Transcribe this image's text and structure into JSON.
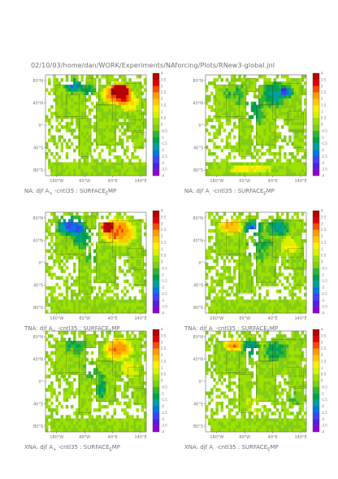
{
  "header": {
    "title": "02/10/03/home/dan/WORK/Experiments/NAforcing/Plots/RNew3-global.jnl"
  },
  "colorbar": {
    "ticks": [
      "4",
      "3.5",
      "3",
      "2.5",
      "2",
      "1.5",
      "1",
      "0.5",
      "0",
      "-0.5",
      "-1",
      "-1.5",
      "-2",
      "-2.5",
      "-3",
      "-3.5",
      "-4"
    ],
    "colors": [
      "#b40000",
      "#e00000",
      "#ff4a00",
      "#ff9b00",
      "#ffc800",
      "#fff000",
      "#d9f000",
      "#9ee000",
      "#82cd14",
      "#32b432",
      "#00a050",
      "#00a0a0",
      "#0078dc",
      "#4040ff",
      "#5020e0",
      "#9000d0"
    ]
  },
  "chart_data": [
    {
      "type": "heatmap",
      "title": "NA: djf A+ -cntl35 : SURFACE_EMP",
      "caption_parts": [
        "NA: djf A",
        "+",
        " -cntl35 : SURFACE",
        "E",
        "MP"
      ],
      "yticks": [
        "80°N",
        "40°N",
        "0°",
        "40°S",
        "80°S"
      ],
      "xticks": [
        "160°W",
        "60°W",
        "40°E",
        "140°E"
      ],
      "xlim": [
        -200,
        160
      ],
      "ylim": [
        -90,
        90
      ],
      "blobs": [
        {
          "lon": 55,
          "lat": 55,
          "w": 60,
          "h": 22,
          "v": 3.2
        },
        {
          "lon": 70,
          "lat": 62,
          "w": 40,
          "h": 14,
          "v": 3.8
        },
        {
          "lon": -100,
          "lat": 70,
          "w": 40,
          "h": 14,
          "v": -2.2
        },
        {
          "lon": -50,
          "lat": 62,
          "w": 30,
          "h": 14,
          "v": -1.2
        },
        {
          "lon": 100,
          "lat": 40,
          "w": 40,
          "h": 20,
          "v": 1.6
        }
      ]
    },
    {
      "type": "heatmap",
      "title": "NA: djf A- -cntl35 : SURFACE_EMP",
      "caption_parts": [
        "NA: djf A",
        "-",
        " -cntl35 : SURFACE",
        "E",
        "MP"
      ],
      "yticks": [
        "80°N",
        "40°N",
        "0°",
        "40°S",
        "80°S"
      ],
      "xticks": [
        "160°W",
        "60°W",
        "40°E",
        "140°E"
      ],
      "xlim": [
        -200,
        160
      ],
      "ylim": [
        -90,
        90
      ],
      "blobs": [
        {
          "lon": 45,
          "lat": 55,
          "w": 50,
          "h": 26,
          "v": -1.8
        },
        {
          "lon": -90,
          "lat": 55,
          "w": 50,
          "h": 22,
          "v": -0.8
        },
        {
          "lon": -40,
          "lat": -78,
          "w": 90,
          "h": 8,
          "v": 1.4
        },
        {
          "lon": 90,
          "lat": 60,
          "w": 30,
          "h": 12,
          "v": -2.6
        },
        {
          "lon": -20,
          "lat": 25,
          "w": 40,
          "h": 30,
          "v": -1.0
        }
      ]
    },
    {
      "type": "heatmap",
      "title": "TNA: djf A+ -cntl35 : SURFACE_EMP",
      "caption_parts": [
        "TNA: djf A",
        "+",
        " -cntl35 : SURFACE",
        "E",
        "MP"
      ],
      "yticks": [
        "80°N",
        "40°N",
        "0°",
        "40°S",
        "80°S"
      ],
      "xticks": [
        "160°W",
        "60°W",
        "40°E",
        "140°E"
      ],
      "xlim": [
        -200,
        160
      ],
      "ylim": [
        -90,
        90
      ],
      "blobs": [
        {
          "lon": -110,
          "lat": 66,
          "w": 60,
          "h": 20,
          "v": -2.6
        },
        {
          "lon": -70,
          "lat": 45,
          "w": 40,
          "h": 22,
          "v": -1.6
        },
        {
          "lon": 60,
          "lat": 55,
          "w": 70,
          "h": 28,
          "v": 2.6
        },
        {
          "lon": -40,
          "lat": 10,
          "w": 30,
          "h": 20,
          "v": -0.9
        },
        {
          "lon": 20,
          "lat": 65,
          "w": 30,
          "h": 12,
          "v": 3.4
        }
      ]
    },
    {
      "type": "heatmap",
      "title": "TNA: djf A- -cntl35 : SURFACE_EMP",
      "caption_parts": [
        "TNA: djf A",
        "-",
        " -cntl35 : SURFACE",
        "E",
        "MP"
      ],
      "yticks": [
        "80°N",
        "40°N",
        "0°",
        "40°S",
        "80°S"
      ],
      "xticks": [
        "160°W",
        "60°W",
        "40°E",
        "140°E"
      ],
      "xlim": [
        -200,
        160
      ],
      "ylim": [
        -90,
        90
      ],
      "blobs": [
        {
          "lon": -110,
          "lat": 66,
          "w": 50,
          "h": 18,
          "v": 2.2
        },
        {
          "lon": -30,
          "lat": 62,
          "w": 40,
          "h": 16,
          "v": -2.4
        },
        {
          "lon": 60,
          "lat": 62,
          "w": 50,
          "h": 18,
          "v": -1.6
        },
        {
          "lon": 0,
          "lat": 30,
          "w": 60,
          "h": 30,
          "v": -0.8
        },
        {
          "lon": 100,
          "lat": 30,
          "w": 40,
          "h": 18,
          "v": 1.2
        }
      ]
    },
    {
      "type": "heatmap",
      "title": "XNA: djf A+ -cntl35 : SURFACE_EMP",
      "caption_parts": [
        "XNA: djf A",
        "+",
        " -cntl35 : SURFACE",
        "E",
        "MP"
      ],
      "yticks": [
        "80°N",
        "40°N",
        "0°",
        "40°S",
        "80°S"
      ],
      "xticks": [
        "160°W",
        "60°W",
        "40°E",
        "140°E"
      ],
      "xlim": [
        -200,
        160
      ],
      "ylim": [
        -90,
        90
      ],
      "blobs": [
        {
          "lon": -90,
          "lat": 65,
          "w": 50,
          "h": 18,
          "v": -1.0
        },
        {
          "lon": 60,
          "lat": 58,
          "w": 60,
          "h": 24,
          "v": 2.4
        },
        {
          "lon": 100,
          "lat": 25,
          "w": 40,
          "h": 20,
          "v": 1.0
        },
        {
          "lon": -40,
          "lat": 20,
          "w": 30,
          "h": 20,
          "v": -0.9
        },
        {
          "lon": 0,
          "lat": -10,
          "w": 20,
          "h": 30,
          "v": -1.4
        }
      ]
    },
    {
      "type": "heatmap",
      "title": "XNA: djf A- -cntl35 : SURFACE_EMP",
      "caption_parts": [
        "XNA: djf A",
        "-",
        " -cntl35 : SURFACE",
        "E",
        "MP"
      ],
      "yticks": [
        "80°N",
        "40°N",
        "0°",
        "40°S",
        "80°S"
      ],
      "xticks": [
        "160°W",
        "60°W",
        "40°E",
        "140°E"
      ],
      "xlim": [
        -200,
        160
      ],
      "ylim": [
        -90,
        90
      ],
      "blobs": [
        {
          "lon": -100,
          "lat": 65,
          "w": 40,
          "h": 14,
          "v": 2.4
        },
        {
          "lon": -40,
          "lat": 60,
          "w": 40,
          "h": 18,
          "v": -1.8
        },
        {
          "lon": 50,
          "lat": 55,
          "w": 50,
          "h": 22,
          "v": -1.2
        },
        {
          "lon": -20,
          "lat": -40,
          "w": 40,
          "h": 20,
          "v": 0.8
        },
        {
          "lon": 120,
          "lat": -30,
          "w": 30,
          "h": 16,
          "v": -0.6
        }
      ]
    }
  ]
}
